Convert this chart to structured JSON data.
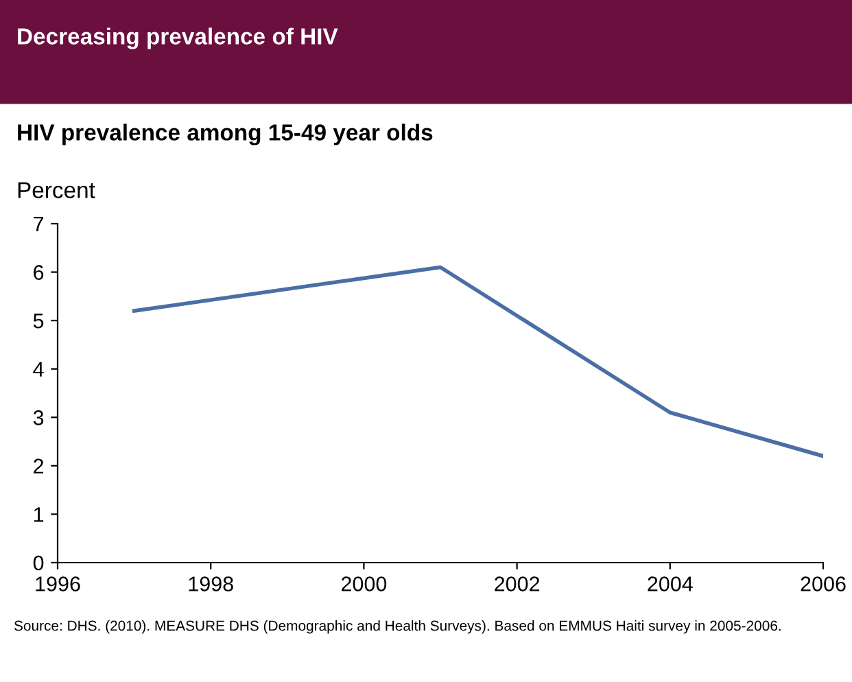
{
  "chart_data": {
    "type": "line",
    "title": "Decreasing prevalence of HIV",
    "subtitle": "HIV prevalence among 15-49 year olds",
    "ylabel": "Percent",
    "x": [
      1997,
      2001,
      2004,
      2006
    ],
    "series": [
      {
        "color": "#4a6fa5",
        "values": [
          5.2,
          6.1,
          3.1,
          2.2
        ]
      }
    ],
    "xlim": [
      1996,
      2006
    ],
    "xticks": [
      1996,
      1998,
      2000,
      2002,
      2004,
      2006
    ],
    "ylim": [
      0,
      7
    ],
    "yticks": [
      0,
      1,
      2,
      3,
      4,
      5,
      6,
      7
    ],
    "grid": false,
    "marker": "none",
    "line_style": "solid",
    "annotations": [
      "Source: DHS. (2010). MEASURE DHS (Demographic and Health Surveys). Based on EMMUS Haiti survey in 2005-2006."
    ]
  }
}
